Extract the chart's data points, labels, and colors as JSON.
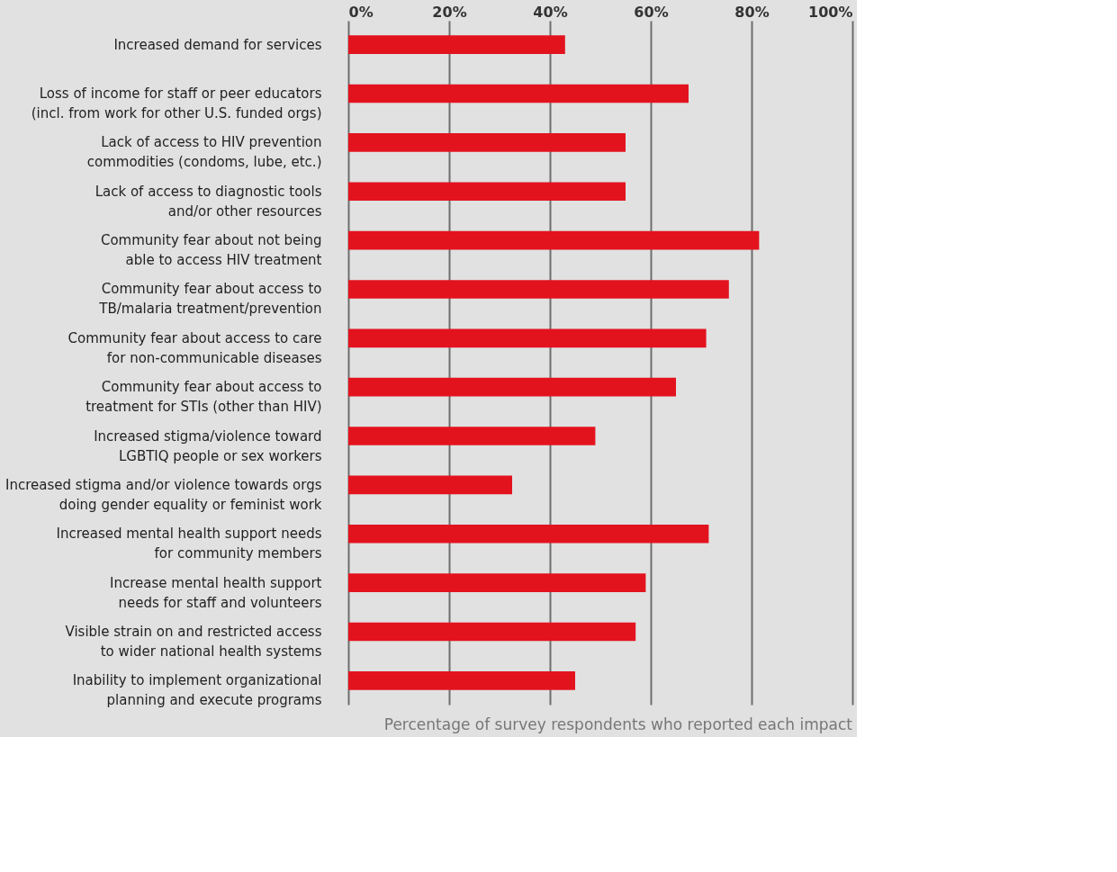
{
  "chart_data": {
    "type": "bar",
    "orientation": "horizontal",
    "xlabel": "Percentage of survey respondents who reported each impact",
    "categories": [
      "Increased demand for services",
      "Loss of income for staff or peer educators\n(incl. from work for other U.S. funded orgs)",
      "Lack of access to HIV prevention\ncommodities (condoms, lube, etc.)",
      "Lack of access to diagnostic tools\nand/or other resources",
      "Community fear about not being\nable to access HIV treatment",
      "Community fear about access to\nTB/malaria treatment/prevention",
      "Community fear about access to care\nfor non-communicable diseases",
      "Community fear about access to\ntreatment for STIs (other than HIV)",
      "Increased stigma/violence toward\nLGBTIQ people or sex workers",
      "Increased stigma and/or violence towards orgs\ndoing gender equality or feminist work",
      "Increased mental health support needs\nfor community members",
      "Increase mental health support\nneeds for staff and volunteers",
      "Visible strain on and restricted access\nto wider national health systems",
      "Inability to implement organizational\nplanning and execute programs"
    ],
    "values": [
      43,
      67.5,
      55,
      55,
      81.5,
      75.5,
      71,
      65,
      49,
      32.5,
      71.5,
      59,
      57,
      45
    ],
    "color": "#e3131e",
    "xlim": [
      0,
      100
    ],
    "xticks": [
      {
        "value": 0,
        "label": "0%"
      },
      {
        "value": 20,
        "label": "20%"
      },
      {
        "value": 40,
        "label": "40%"
      },
      {
        "value": 60,
        "label": "60%"
      },
      {
        "value": 80,
        "label": "80%"
      },
      {
        "value": 100,
        "label": "100%"
      }
    ],
    "grid": "x"
  }
}
